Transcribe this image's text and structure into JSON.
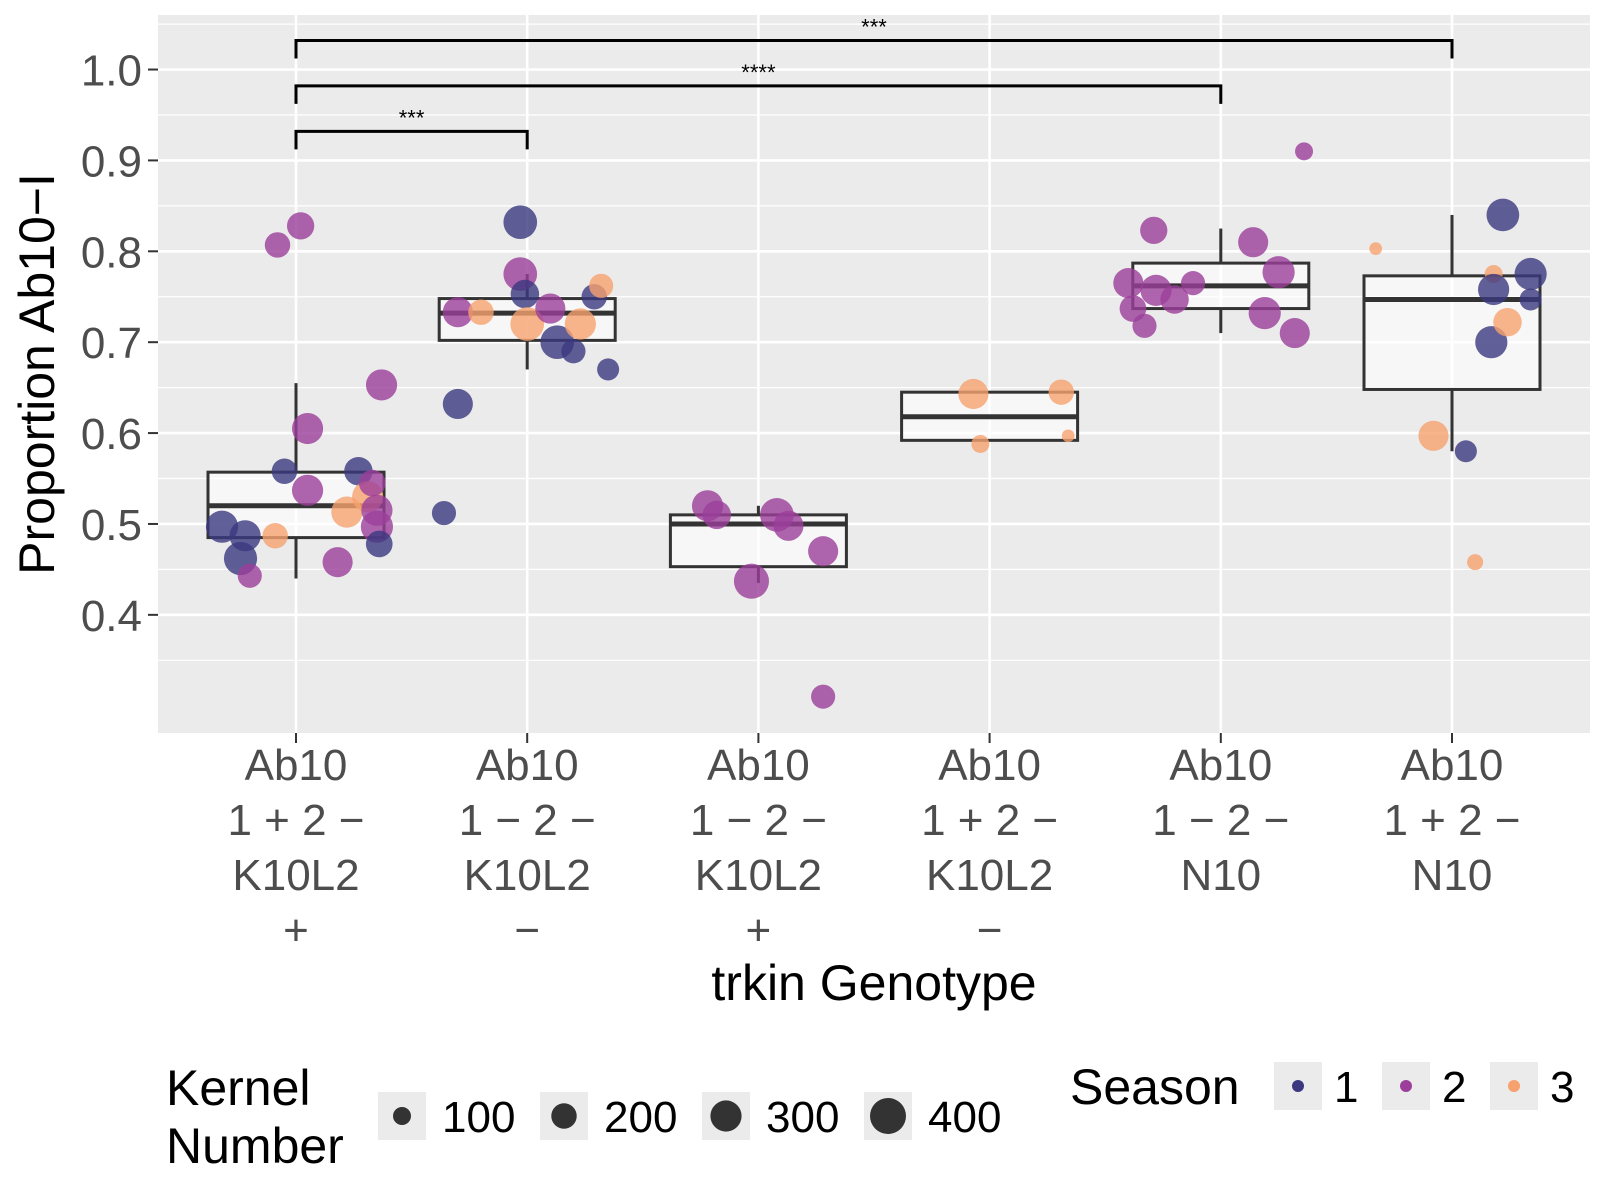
{
  "chart_data": {
    "type": "box",
    "xlabel": "trkin Genotype",
    "ylabel": "Proportion Ab10−I",
    "ylim": [
      0.27,
      1.06
    ],
    "yticks": [
      0.4,
      0.5,
      0.6,
      0.7,
      0.8,
      0.9,
      1.0
    ],
    "ytick_labels": [
      "0.4",
      "0.5",
      "0.6",
      "0.7",
      "0.8",
      "0.9",
      "1.0"
    ],
    "grid": true,
    "categories": [
      {
        "lines": [
          "Ab10",
          "1 + 2 −",
          "K10L2",
          "+"
        ]
      },
      {
        "lines": [
          "Ab10",
          "1 − 2 −",
          "K10L2",
          "−"
        ]
      },
      {
        "lines": [
          "Ab10",
          "1 − 2 −",
          "K10L2",
          "+"
        ]
      },
      {
        "lines": [
          "Ab10",
          "1 + 2 −",
          "K10L2",
          "−"
        ]
      },
      {
        "lines": [
          "Ab10",
          "1 − 2 −",
          "N10"
        ]
      },
      {
        "lines": [
          "Ab10",
          "1 + 2 −",
          "N10"
        ]
      }
    ],
    "boxes": [
      {
        "whisker_low": 0.44,
        "q1": 0.485,
        "median": 0.52,
        "q3": 0.557,
        "whisker_high": 0.655
      },
      {
        "whisker_low": 0.67,
        "q1": 0.702,
        "median": 0.732,
        "q3": 0.748,
        "whisker_high": 0.775
      },
      {
        "whisker_low": 0.435,
        "q1": 0.453,
        "median": 0.5,
        "q3": 0.51,
        "whisker_high": 0.52
      },
      {
        "whisker_low": 0.592,
        "q1": 0.592,
        "median": 0.618,
        "q3": 0.645,
        "whisker_high": 0.645
      },
      {
        "whisker_low": 0.71,
        "q1": 0.737,
        "median": 0.762,
        "q3": 0.787,
        "whisker_high": 0.825
      },
      {
        "whisker_low": 0.58,
        "q1": 0.648,
        "median": 0.747,
        "q3": 0.773,
        "whisker_high": 0.84
      }
    ],
    "points": [
      {
        "group": 0,
        "dx": -0.32,
        "y": 0.497,
        "season": 1,
        "kernels": 320
      },
      {
        "group": 0,
        "dx": -0.24,
        "y": 0.462,
        "season": 1,
        "kernels": 340
      },
      {
        "group": 0,
        "dx": -0.22,
        "y": 0.487,
        "season": 1,
        "kernels": 300
      },
      {
        "group": 0,
        "dx": -0.2,
        "y": 0.443,
        "season": 2,
        "kernels": 180
      },
      {
        "group": 0,
        "dx": -0.08,
        "y": 0.807,
        "season": 2,
        "kernels": 200
      },
      {
        "group": 0,
        "dx": -0.09,
        "y": 0.487,
        "season": 3,
        "kernels": 200
      },
      {
        "group": 0,
        "dx": -0.05,
        "y": 0.558,
        "season": 1,
        "kernels": 200
      },
      {
        "group": 0,
        "dx": 0.02,
        "y": 0.828,
        "season": 2,
        "kernels": 230
      },
      {
        "group": 0,
        "dx": 0.05,
        "y": 0.605,
        "season": 2,
        "kernels": 300
      },
      {
        "group": 0,
        "dx": 0.05,
        "y": 0.537,
        "season": 2,
        "kernels": 300
      },
      {
        "group": 0,
        "dx": 0.18,
        "y": 0.458,
        "season": 2,
        "kernels": 280
      },
      {
        "group": 0,
        "dx": 0.22,
        "y": 0.513,
        "season": 3,
        "kernels": 300
      },
      {
        "group": 0,
        "dx": 0.27,
        "y": 0.558,
        "season": 1,
        "kernels": 250
      },
      {
        "group": 0,
        "dx": 0.31,
        "y": 0.53,
        "season": 3,
        "kernels": 300
      },
      {
        "group": 0,
        "dx": 0.33,
        "y": 0.545,
        "season": 2,
        "kernels": 220
      },
      {
        "group": 0,
        "dx": 0.35,
        "y": 0.515,
        "season": 2,
        "kernels": 300
      },
      {
        "group": 0,
        "dx": 0.35,
        "y": 0.497,
        "season": 2,
        "kernels": 320
      },
      {
        "group": 0,
        "dx": 0.36,
        "y": 0.478,
        "season": 1,
        "kernels": 220
      },
      {
        "group": 0,
        "dx": 0.37,
        "y": 0.653,
        "season": 2,
        "kernels": 300
      },
      {
        "group": 1,
        "dx": -0.36,
        "y": 0.512,
        "season": 1,
        "kernels": 180
      },
      {
        "group": 1,
        "dx": -0.3,
        "y": 0.632,
        "season": 1,
        "kernels": 280
      },
      {
        "group": 1,
        "dx": -0.3,
        "y": 0.733,
        "season": 2,
        "kernels": 280
      },
      {
        "group": 1,
        "dx": -0.2,
        "y": 0.733,
        "season": 3,
        "kernels": 200
      },
      {
        "group": 1,
        "dx": -0.03,
        "y": 0.832,
        "season": 1,
        "kernels": 350
      },
      {
        "group": 1,
        "dx": -0.03,
        "y": 0.775,
        "season": 2,
        "kernels": 350
      },
      {
        "group": 1,
        "dx": -0.01,
        "y": 0.753,
        "season": 1,
        "kernels": 250
      },
      {
        "group": 1,
        "dx": 0.0,
        "y": 0.72,
        "season": 3,
        "kernels": 350
      },
      {
        "group": 1,
        "dx": 0.1,
        "y": 0.737,
        "season": 2,
        "kernels": 280
      },
      {
        "group": 1,
        "dx": 0.13,
        "y": 0.7,
        "season": 1,
        "kernels": 350
      },
      {
        "group": 1,
        "dx": 0.2,
        "y": 0.69,
        "season": 1,
        "kernels": 180
      },
      {
        "group": 1,
        "dx": 0.23,
        "y": 0.72,
        "season": 3,
        "kernels": 300
      },
      {
        "group": 1,
        "dx": 0.29,
        "y": 0.75,
        "season": 1,
        "kernels": 200
      },
      {
        "group": 1,
        "dx": 0.32,
        "y": 0.762,
        "season": 3,
        "kernels": 180
      },
      {
        "group": 1,
        "dx": 0.35,
        "y": 0.67,
        "season": 1,
        "kernels": 150
      },
      {
        "group": 2,
        "dx": -0.22,
        "y": 0.52,
        "season": 2,
        "kernels": 300
      },
      {
        "group": 2,
        "dx": -0.18,
        "y": 0.51,
        "season": 2,
        "kernels": 250
      },
      {
        "group": 2,
        "dx": -0.03,
        "y": 0.437,
        "season": 2,
        "kernels": 380
      },
      {
        "group": 2,
        "dx": 0.08,
        "y": 0.51,
        "season": 2,
        "kernels": 350
      },
      {
        "group": 2,
        "dx": 0.13,
        "y": 0.498,
        "season": 2,
        "kernels": 280
      },
      {
        "group": 2,
        "dx": 0.28,
        "y": 0.47,
        "season": 2,
        "kernels": 280
      },
      {
        "group": 2,
        "dx": 0.28,
        "y": 0.31,
        "season": 2,
        "kernels": 180
      },
      {
        "group": 3,
        "dx": -0.07,
        "y": 0.643,
        "season": 3,
        "kernels": 280
      },
      {
        "group": 3,
        "dx": -0.04,
        "y": 0.588,
        "season": 3,
        "kernels": 100
      },
      {
        "group": 3,
        "dx": 0.31,
        "y": 0.645,
        "season": 3,
        "kernels": 200
      },
      {
        "group": 3,
        "dx": 0.34,
        "y": 0.597,
        "season": 3,
        "kernels": 50
      },
      {
        "group": 4,
        "dx": -0.4,
        "y": 0.765,
        "season": 2,
        "kernels": 280
      },
      {
        "group": 4,
        "dx": -0.38,
        "y": 0.737,
        "season": 2,
        "kernels": 220
      },
      {
        "group": 4,
        "dx": -0.33,
        "y": 0.718,
        "season": 2,
        "kernels": 180
      },
      {
        "group": 4,
        "dx": -0.29,
        "y": 0.823,
        "season": 2,
        "kernels": 230
      },
      {
        "group": 4,
        "dx": -0.28,
        "y": 0.757,
        "season": 2,
        "kernels": 300
      },
      {
        "group": 4,
        "dx": -0.2,
        "y": 0.747,
        "season": 2,
        "kernels": 250
      },
      {
        "group": 4,
        "dx": -0.12,
        "y": 0.765,
        "season": 2,
        "kernels": 180
      },
      {
        "group": 4,
        "dx": 0.14,
        "y": 0.81,
        "season": 2,
        "kernels": 280
      },
      {
        "group": 4,
        "dx": 0.19,
        "y": 0.732,
        "season": 2,
        "kernels": 320
      },
      {
        "group": 4,
        "dx": 0.25,
        "y": 0.777,
        "season": 2,
        "kernels": 320
      },
      {
        "group": 4,
        "dx": 0.32,
        "y": 0.71,
        "season": 2,
        "kernels": 280
      },
      {
        "group": 4,
        "dx": 0.36,
        "y": 0.91,
        "season": 2,
        "kernels": 100
      },
      {
        "group": 5,
        "dx": -0.33,
        "y": 0.803,
        "season": 3,
        "kernels": 50
      },
      {
        "group": 5,
        "dx": -0.08,
        "y": 0.597,
        "season": 3,
        "kernels": 280
      },
      {
        "group": 5,
        "dx": 0.06,
        "y": 0.58,
        "season": 1,
        "kernels": 150
      },
      {
        "group": 5,
        "dx": 0.1,
        "y": 0.458,
        "season": 3,
        "kernels": 80
      },
      {
        "group": 5,
        "dx": 0.17,
        "y": 0.7,
        "season": 1,
        "kernels": 320
      },
      {
        "group": 5,
        "dx": 0.18,
        "y": 0.775,
        "season": 3,
        "kernels": 100
      },
      {
        "group": 5,
        "dx": 0.18,
        "y": 0.758,
        "season": 1,
        "kernels": 300
      },
      {
        "group": 5,
        "dx": 0.22,
        "y": 0.84,
        "season": 1,
        "kernels": 330
      },
      {
        "group": 5,
        "dx": 0.24,
        "y": 0.722,
        "season": 3,
        "kernels": 250
      },
      {
        "group": 5,
        "dx": 0.34,
        "y": 0.747,
        "season": 1,
        "kernels": 150
      },
      {
        "group": 5,
        "dx": 0.34,
        "y": 0.775,
        "season": 1,
        "kernels": 320
      }
    ],
    "significance": [
      {
        "from": 0,
        "to": 1,
        "y": 0.932,
        "label": "***"
      },
      {
        "from": 0,
        "to": 4,
        "y": 0.982,
        "label": "****"
      },
      {
        "from": 0,
        "to": 5,
        "y": 1.032,
        "label": "***"
      }
    ],
    "legend_size": {
      "title_lines": [
        "Kernel",
        "Number"
      ],
      "values": [
        100,
        200,
        300,
        400
      ],
      "labels": [
        "100",
        "200",
        "300",
        "400"
      ]
    },
    "legend_color": {
      "title": "Season",
      "levels": [
        1,
        2,
        3
      ],
      "labels": [
        "1",
        "2",
        "3"
      ]
    },
    "season_colors": {
      "1": "#3b3880",
      "2": "#9b3f9a",
      "3": "#f6a16e"
    },
    "legend_position": "bottom"
  }
}
